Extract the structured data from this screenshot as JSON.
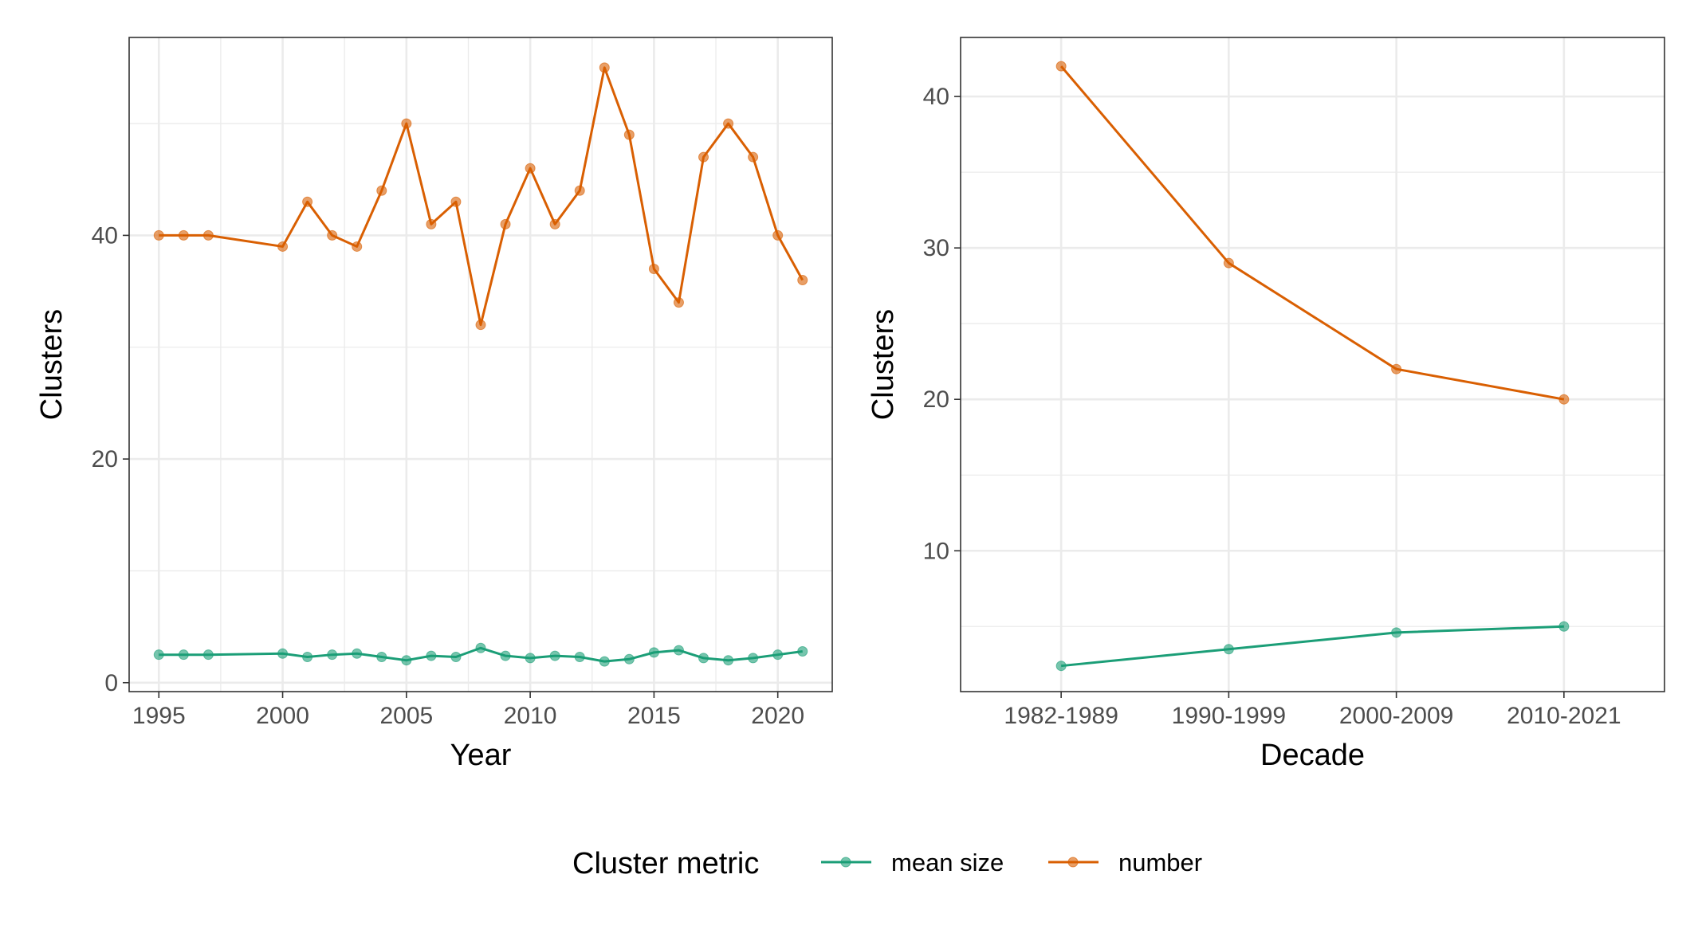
{
  "chart_data": [
    {
      "type": "line",
      "xlabel": "Year",
      "ylabel": "Clusters",
      "xlim": [
        1993.8,
        2022.2
      ],
      "ylim": [
        -0.8,
        57.7
      ],
      "x_ticks": [
        1995,
        2000,
        2005,
        2010,
        2015,
        2020
      ],
      "y_ticks": [
        0,
        20,
        40
      ],
      "grid": true,
      "x": [
        1995,
        1996,
        1997,
        2000,
        2001,
        2002,
        2003,
        2004,
        2005,
        2006,
        2007,
        2008,
        2009,
        2010,
        2011,
        2012,
        2013,
        2014,
        2015,
        2016,
        2017,
        2018,
        2019,
        2020,
        2021
      ],
      "series": [
        {
          "name": "mean size",
          "values": [
            2.5,
            2.5,
            2.5,
            2.6,
            2.3,
            2.5,
            2.6,
            2.3,
            2.0,
            2.4,
            2.3,
            3.1,
            2.4,
            2.2,
            2.4,
            2.3,
            1.9,
            2.1,
            2.7,
            2.9,
            2.2,
            2.0,
            2.2,
            2.5,
            2.8
          ]
        },
        {
          "name": "number",
          "values": [
            40,
            40,
            40,
            39,
            43,
            40,
            39,
            44,
            50,
            41,
            43,
            32,
            41,
            46,
            41,
            44,
            55,
            49,
            37,
            34,
            47,
            50,
            47,
            40,
            36
          ]
        }
      ]
    },
    {
      "type": "line",
      "xlabel": "Decade",
      "ylabel": "Clusters",
      "categories": [
        "1982-1989",
        "1990-1999",
        "2000-2009",
        "2010-2021"
      ],
      "ylim": [
        0.7,
        43.9
      ],
      "y_ticks": [
        10,
        20,
        30,
        40
      ],
      "grid": true,
      "series": [
        {
          "name": "mean size",
          "values": [
            2.4,
            3.5,
            4.6,
            5.0
          ]
        },
        {
          "name": "number",
          "values": [
            42,
            29,
            22,
            20
          ]
        }
      ]
    }
  ],
  "legend": {
    "title": "Cluster metric",
    "position": "bottom",
    "items": [
      {
        "label": "mean size",
        "color": "#1b9e77"
      },
      {
        "label": "number",
        "color": "#d95f02"
      }
    ]
  },
  "colors": {
    "mean size": "#1b9e77",
    "number": "#d95f02",
    "grid": "#ebebeb",
    "panel_border": "#333333"
  }
}
